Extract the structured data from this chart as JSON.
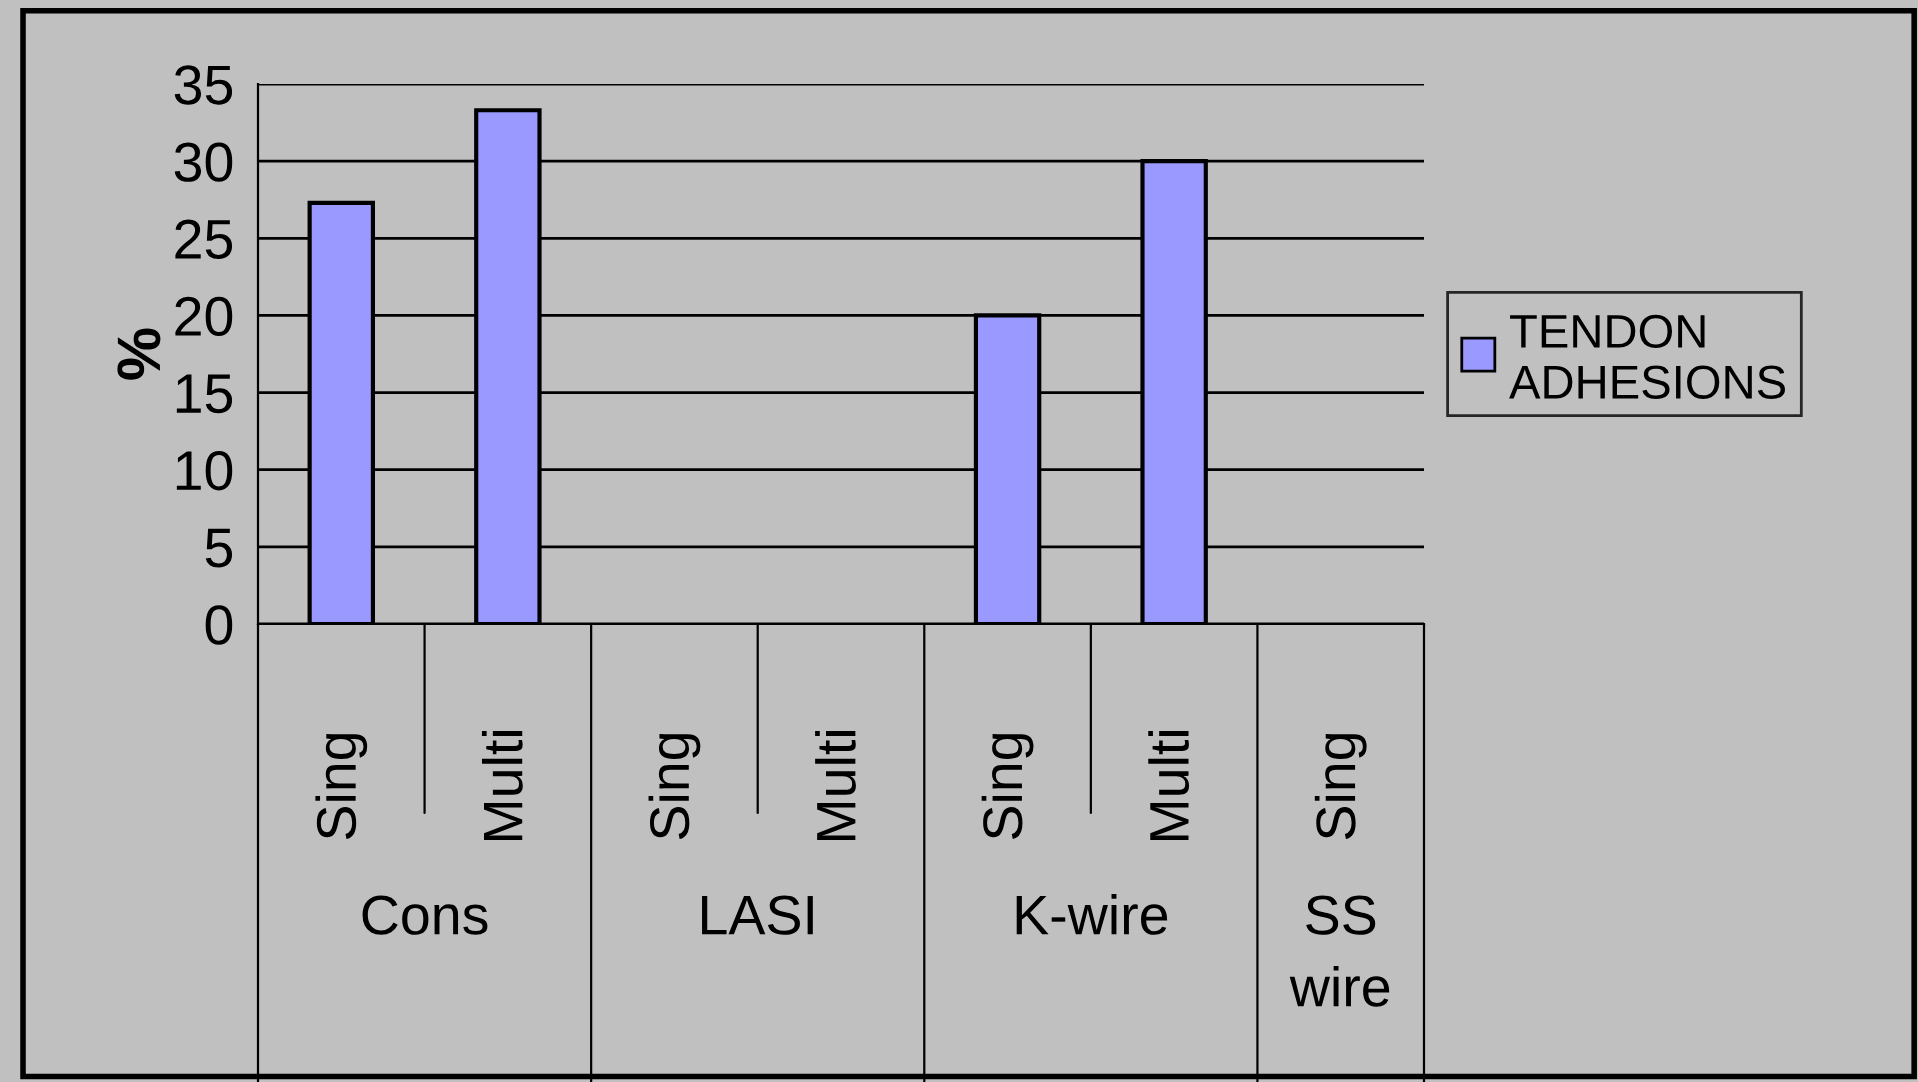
{
  "chart_data": {
    "type": "bar",
    "ylabel": "%",
    "categories": [
      "Sing",
      "Multi",
      "Sing",
      "Multi",
      "Sing",
      "Multi",
      "Sing"
    ],
    "series": [
      {
        "name": "TENDON ADHESIONS",
        "color": "#9999ff",
        "values": [
          27.3,
          33.3,
          0,
          0,
          20,
          30,
          0
        ]
      }
    ],
    "annotations": [
      "Cons",
      "LASI",
      "K-wire",
      "SS\nwire"
    ],
    "ylim": [
      0,
      35
    ],
    "yticks": [
      0,
      5,
      10,
      15,
      20,
      25,
      30,
      35
    ],
    "grid": "y",
    "legend": "right"
  }
}
